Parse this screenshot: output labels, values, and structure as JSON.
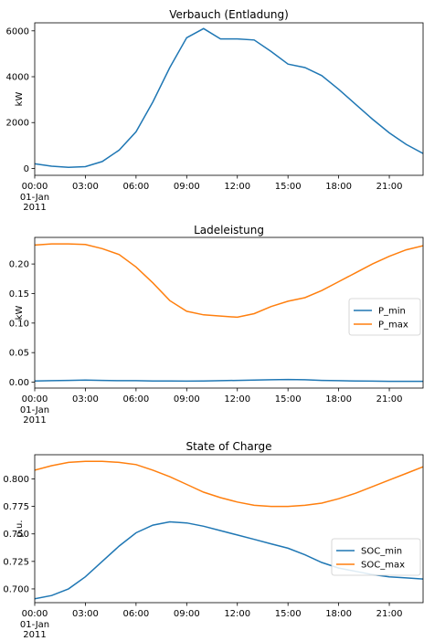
{
  "chart_data": [
    {
      "type": "line",
      "title": "Verbauch (Entladung)",
      "xlabel": "",
      "ylabel": "kW",
      "x": [
        0,
        1,
        2,
        3,
        4,
        5,
        6,
        7,
        8,
        9,
        10,
        11,
        12,
        13,
        14,
        15,
        16,
        17,
        18,
        19,
        20,
        21,
        22,
        23
      ],
      "xlim": [
        0,
        23
      ],
      "ylim": [
        -300,
        6350
      ],
      "xticks": [
        "00:00",
        "03:00",
        "06:00",
        "09:00",
        "12:00",
        "15:00",
        "18:00",
        "21:00"
      ],
      "xtick_values": [
        0,
        3,
        6,
        9,
        12,
        15,
        18,
        21
      ],
      "xtick_sublabel": [
        "01-Jan",
        "2011"
      ],
      "yticks": [
        0,
        2000,
        4000,
        6000
      ],
      "legend": null,
      "series": [
        {
          "name": "",
          "color": "#1f77b4",
          "values": [
            200,
            100,
            50,
            80,
            300,
            800,
            1600,
            2900,
            4400,
            5700,
            6100,
            5650,
            5650,
            5600,
            5100,
            4550,
            4400,
            4050,
            3450,
            2800,
            2150,
            1550,
            1050,
            650
          ]
        }
      ]
    },
    {
      "type": "line",
      "title": "Ladeleistung",
      "xlabel": "",
      "ylabel": "kW",
      "x": [
        0,
        1,
        2,
        3,
        4,
        5,
        6,
        7,
        8,
        9,
        10,
        11,
        12,
        13,
        14,
        15,
        16,
        17,
        18,
        19,
        20,
        21,
        22,
        23
      ],
      "xlim": [
        0,
        23
      ],
      "ylim": [
        -0.01,
        0.245
      ],
      "xticks": [
        "00:00",
        "03:00",
        "06:00",
        "09:00",
        "12:00",
        "15:00",
        "18:00",
        "21:00"
      ],
      "xtick_values": [
        0,
        3,
        6,
        9,
        12,
        15,
        18,
        21
      ],
      "xtick_sublabel": [
        "01-Jan",
        "2011"
      ],
      "yticks": [
        "0.00",
        "0.05",
        "0.10",
        "0.15",
        "0.20"
      ],
      "ytick_values": [
        0,
        0.05,
        0.1,
        0.15,
        0.2
      ],
      "legend": "center right",
      "series": [
        {
          "name": "P_min",
          "color": "#1f77b4",
          "values": [
            0.002,
            0.0025,
            0.003,
            0.0035,
            0.003,
            0.0025,
            0.0025,
            0.002,
            0.002,
            0.0018,
            0.002,
            0.0025,
            0.003,
            0.0035,
            0.004,
            0.0045,
            0.004,
            0.003,
            0.0025,
            0.002,
            0.0018,
            0.0015,
            0.0015,
            0.0015
          ]
        },
        {
          "name": "P_max",
          "color": "#ff7f0e",
          "values": [
            0.232,
            0.234,
            0.234,
            0.233,
            0.226,
            0.216,
            0.195,
            0.168,
            0.138,
            0.12,
            0.114,
            0.112,
            0.11,
            0.116,
            0.128,
            0.137,
            0.143,
            0.155,
            0.17,
            0.185,
            0.2,
            0.213,
            0.224,
            0.231
          ]
        }
      ]
    },
    {
      "type": "line",
      "title": "State of Charge",
      "xlabel": "",
      "ylabel": "p.u.",
      "x": [
        0,
        1,
        2,
        3,
        4,
        5,
        6,
        7,
        8,
        9,
        10,
        11,
        12,
        13,
        14,
        15,
        16,
        17,
        18,
        19,
        20,
        21,
        22,
        23
      ],
      "xlim": [
        0,
        23
      ],
      "ylim": [
        0.6875,
        0.822
      ],
      "xticks": [
        "00:00",
        "03:00",
        "06:00",
        "09:00",
        "12:00",
        "15:00",
        "18:00",
        "21:00"
      ],
      "xtick_values": [
        0,
        3,
        6,
        9,
        12,
        15,
        18,
        21
      ],
      "xtick_sublabel": [
        "01-Jan",
        "2011"
      ],
      "yticks": [
        "0.700",
        "0.725",
        "0.750",
        "0.775",
        "0.800"
      ],
      "ytick_values": [
        0.7,
        0.725,
        0.75,
        0.775,
        0.8
      ],
      "legend": "center right",
      "series": [
        {
          "name": "SOC_min",
          "color": "#1f77b4",
          "values": [
            0.691,
            0.694,
            0.7,
            0.711,
            0.725,
            0.739,
            0.751,
            0.758,
            0.761,
            0.76,
            0.757,
            0.753,
            0.749,
            0.745,
            0.741,
            0.737,
            0.731,
            0.724,
            0.719,
            0.716,
            0.713,
            0.711,
            0.71,
            0.709
          ]
        },
        {
          "name": "SOC_max",
          "color": "#ff7f0e",
          "values": [
            0.808,
            0.812,
            0.815,
            0.816,
            0.816,
            0.815,
            0.813,
            0.808,
            0.802,
            0.795,
            0.788,
            0.783,
            0.779,
            0.776,
            0.775,
            0.775,
            0.776,
            0.778,
            0.782,
            0.787,
            0.793,
            0.799,
            0.805,
            0.811
          ]
        }
      ]
    }
  ]
}
